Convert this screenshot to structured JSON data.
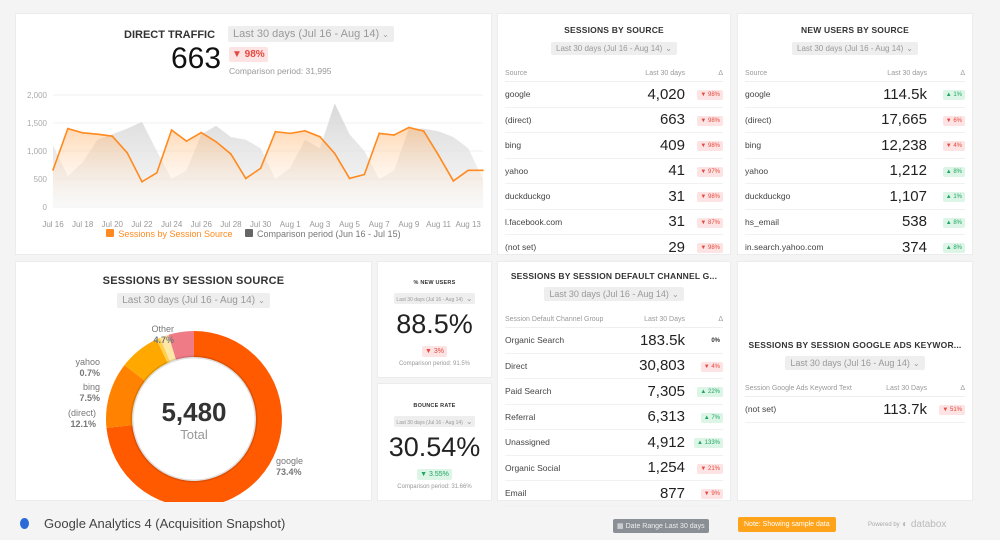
{
  "direct_traffic": {
    "title": "DIRECT TRAFFIC",
    "date_range": "Last 30 days (Jul 16 - Aug 14)",
    "value": "663",
    "change": "▼ 98%",
    "comparison": "Comparison period: 31,995",
    "legend": {
      "series": "Sessions by Session Source",
      "comparison": "Comparison period (Jun 16 - Jul 15)"
    }
  },
  "chart_data": {
    "type": "area",
    "title": "DIRECT TRAFFIC",
    "ylim": [
      0,
      2000
    ],
    "yticks": [
      "0",
      "500",
      "1,000",
      "1,500",
      "2,000"
    ],
    "xticks": [
      "Jul 16",
      "Jul 18",
      "Jul 20",
      "Jul 22",
      "Jul 24",
      "Jul 26",
      "Jul 28",
      "Jul 30",
      "Aug 1",
      "Aug 3",
      "Aug 5",
      "Aug 7",
      "Aug 9",
      "Aug 11",
      "Aug 13"
    ],
    "series": [
      {
        "name": "Sessions by Session Source",
        "color": "#ff8a1f",
        "values": [
          660,
          1400,
          1325,
          1300,
          1265,
          970,
          450,
          610,
          1375,
          1175,
          1330,
          1165,
          945,
          510,
          690,
          1345,
          1315,
          1360,
          1255,
          955,
          510,
          580,
          1315,
          1285,
          1420,
          1355,
          925,
          465,
          655,
          655
        ]
      },
      {
        "name": "Comparison period (Jun 16 - Jul 15)",
        "color": "#d8d8d8",
        "values": [
          1100,
          550,
          800,
          1200,
          1300,
          1400,
          1520,
          1000,
          500,
          650,
          1300,
          1450,
          1250,
          1200,
          1050,
          500,
          700,
          1200,
          1050,
          1850,
          1300,
          1000,
          500,
          650,
          1400,
          1400,
          1350,
          1250,
          1050,
          500
        ]
      }
    ]
  },
  "sessions_by_source": {
    "title": "SESSIONS BY SOURCE",
    "date_range": "Last 30 days (Jul 16 - Aug 14)",
    "headers": [
      "Source",
      "Last 30 days",
      "Δ"
    ],
    "rows": [
      [
        "google",
        "4,020",
        "▼ 98%",
        "down"
      ],
      [
        "(direct)",
        "663",
        "▼ 98%",
        "down"
      ],
      [
        "bing",
        "409",
        "▼ 98%",
        "down"
      ],
      [
        "yahoo",
        "41",
        "▼ 97%",
        "down"
      ],
      [
        "duckduckgo",
        "31",
        "▼ 98%",
        "down"
      ],
      [
        "l.facebook.com",
        "31",
        "▼ 87%",
        "down"
      ],
      [
        "(not set)",
        "29",
        "▼ 98%",
        "down"
      ]
    ]
  },
  "new_users_by_source": {
    "title": "NEW USERS BY SOURCE",
    "date_range": "Last 30 days (Jul 16 - Aug 14)",
    "headers": [
      "Source",
      "Last 30 days",
      "Δ"
    ],
    "rows": [
      [
        "google",
        "114.5k",
        "▲ 1%",
        "up"
      ],
      [
        "(direct)",
        "17,665",
        "▼ 6%",
        "down"
      ],
      [
        "bing",
        "12,238",
        "▼ 4%",
        "down"
      ],
      [
        "yahoo",
        "1,212",
        "▲ 8%",
        "up"
      ],
      [
        "duckduckgo",
        "1,107",
        "▲ 1%",
        "up"
      ],
      [
        "hs_email",
        "538",
        "▲ 8%",
        "up"
      ],
      [
        "in.search.yahoo.com",
        "374",
        "▲ 8%",
        "up"
      ]
    ]
  },
  "session_source_donut": {
    "title": "SESSIONS BY SESSION SOURCE",
    "date_range": "Last 30 days (Jul 16 - Aug 14)",
    "total": "5,480",
    "total_label": "Total",
    "slices": [
      {
        "label": "google",
        "pct": "73.4%",
        "value": 73.4,
        "color": "#ff5a00"
      },
      {
        "label": "(direct)",
        "pct": "12.1%",
        "value": 12.1,
        "color": "#ff8200"
      },
      {
        "label": "bing",
        "pct": "7.5%",
        "value": 7.5,
        "color": "#ffa800"
      },
      {
        "label": "yahoo",
        "pct": "0.7%",
        "value": 0.7,
        "color": "#ffd04d"
      },
      {
        "label": "",
        "pct": "",
        "value": 1.6,
        "color": "#ffe7a6"
      },
      {
        "label": "Other",
        "pct": "4.7%",
        "value": 4.7,
        "color": "#ef7b86"
      }
    ]
  },
  "new_users_pct": {
    "title": "% NEW USERS",
    "date_range": "Last 30 days (Jul 16 - Aug 14)",
    "value": "88.5%",
    "change": "▼ 3%",
    "comparison": "Comparison period: 91.5%"
  },
  "bounce_rate": {
    "title": "BOUNCE RATE",
    "date_range": "Last 30 days (Jul 16 - Aug 14)",
    "value": "30.54%",
    "change": "▼ 3.55%",
    "comparison": "Comparison period: 31.66%"
  },
  "channel_group": {
    "title": "SESSIONS BY SESSION DEFAULT CHANNEL G...",
    "date_range": "Last 30 days (Jul 16 - Aug 14)",
    "headers": [
      "Session Default Channel Group",
      "Last 30 Days",
      "Δ"
    ],
    "rows": [
      [
        "Organic Search",
        "183.5k",
        "0%",
        "flat"
      ],
      [
        "Direct",
        "30,803",
        "▼ 4%",
        "down"
      ],
      [
        "Paid Search",
        "7,305",
        "▲ 22%",
        "up"
      ],
      [
        "Referral",
        "6,313",
        "▲ 7%",
        "up"
      ],
      [
        "Unassigned",
        "4,912",
        "▲ 133%",
        "up"
      ],
      [
        "Organic Social",
        "1,254",
        "▼ 21%",
        "down"
      ],
      [
        "Email",
        "877",
        "▼ 9%",
        "down"
      ]
    ]
  },
  "ads_keyword": {
    "title": "SESSIONS BY SESSION GOOGLE ADS KEYWOR...",
    "date_range": "Last 30 days (Jul 16 - Aug 14)",
    "headers": [
      "Session Google Ads Keyword Text",
      "Last 30 Days",
      "Δ"
    ],
    "rows": [
      [
        "(not set)",
        "113.7k",
        "▼ 51%",
        "down"
      ]
    ]
  },
  "footer": {
    "title": "Google Analytics 4 (Acquisition Snapshot)",
    "date_range_label": "Date Range",
    "date_range_value": "Last 30 days",
    "note": "Note: Showing sample data",
    "powered_by": "Powered by",
    "brand": "databox"
  }
}
